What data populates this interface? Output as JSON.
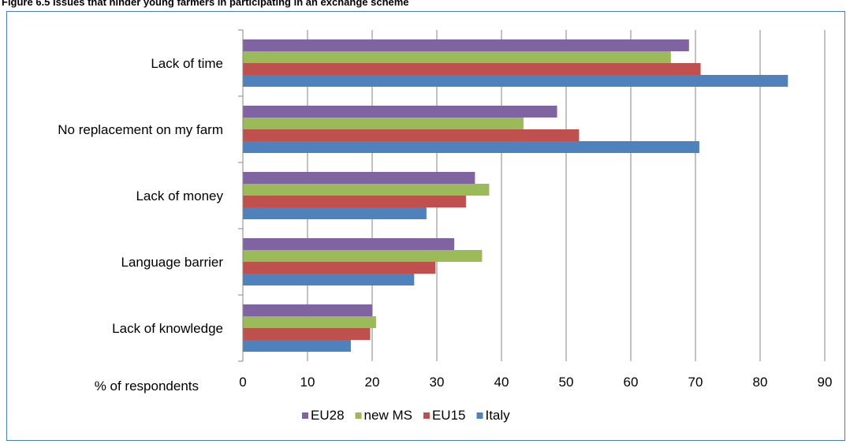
{
  "figure_title": "Figure 6.5 Issues that hinder young farmers in participating in an exchange scheme",
  "colors": {
    "EU28": "#8064a2",
    "new MS": "#9bbb59",
    "EU15": "#c0504d",
    "Italy": "#4f81bd",
    "frame": "#4a7ebb",
    "grid": "#868686"
  },
  "chart_data": {
    "type": "bar",
    "orientation": "horizontal",
    "categories": [
      "Lack of time",
      "No replacement on my farm",
      "Lack of money",
      "Language barrier",
      "Lack of knowledge"
    ],
    "series": [
      {
        "name": "EU28",
        "values": [
          69,
          48.6,
          35.9,
          32.7,
          20
        ]
      },
      {
        "name": "new MS",
        "values": [
          66.2,
          43.4,
          38.1,
          37,
          20.6
        ]
      },
      {
        "name": "EU15",
        "values": [
          70.8,
          52,
          34.5,
          29.8,
          19.7
        ]
      },
      {
        "name": "Italy",
        "values": [
          84.3,
          70.6,
          28.4,
          26.5,
          16.7
        ]
      }
    ],
    "xlabel": "% of respondents",
    "xlim": [
      0,
      90
    ],
    "xticks": [
      0,
      10,
      20,
      30,
      40,
      50,
      60,
      70,
      80,
      90
    ],
    "grid": true,
    "legend_position": "bottom"
  }
}
